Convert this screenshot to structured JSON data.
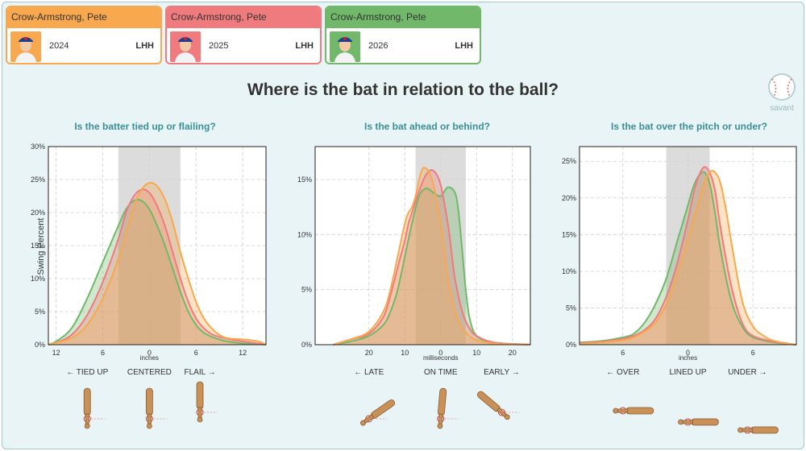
{
  "cards": [
    {
      "name": "Crow-Armstrong, Pete",
      "season": "2024",
      "hand": "LHH",
      "color": "#f8a84e"
    },
    {
      "name": "Crow-Armstrong, Pete",
      "season": "2025",
      "hand": "LHH",
      "color": "#f07b7e"
    },
    {
      "name": "Crow-Armstrong, Pete",
      "season": "2026",
      "hand": "LHH",
      "color": "#71b86a"
    }
  ],
  "page_title": "Where is the bat in relation to the ball?",
  "logo_text": "savant",
  "y_axis_label": "Swing Percent",
  "chart_data": [
    {
      "type": "area",
      "title": "Is the batter tied up or flailing?",
      "xlabel": "inches",
      "xlim": [
        13,
        -15
      ],
      "ylim": [
        0,
        30
      ],
      "x_ticks": [
        12,
        6,
        0,
        -6,
        -12
      ],
      "x_tick_labels": [
        "12",
        "6",
        "0",
        "6",
        "12"
      ],
      "y_ticks": [
        0,
        5,
        10,
        15,
        20,
        25,
        30
      ],
      "y_tick_labels": [
        "0%",
        "5%",
        "10%",
        "15%",
        "20%",
        "25%",
        "30%"
      ],
      "shaded_band": [
        4,
        -4
      ],
      "zone_labels": [
        {
          "x": 8,
          "text": "← TIED UP"
        },
        {
          "x": 0,
          "text": "CENTERED"
        },
        {
          "x": -6.5,
          "text": "FLAIL →"
        }
      ],
      "series": [
        {
          "season": "2026",
          "color": "#71b86a",
          "x": [
            13,
            12,
            10,
            8,
            6,
            4,
            3,
            2,
            1,
            0,
            -1,
            -2,
            -3,
            -4,
            -5,
            -6,
            -7,
            -8,
            -9,
            -10,
            -12,
            -15
          ],
          "y": [
            0,
            0.5,
            2.5,
            7,
            12.5,
            18,
            20.5,
            21.8,
            21.8,
            20.5,
            18,
            15,
            11.5,
            8,
            5,
            3,
            1.8,
            1.2,
            0.8,
            0.5,
            0.2,
            0
          ]
        },
        {
          "season": "2025",
          "color": "#f07b7e",
          "x": [
            13,
            12,
            10,
            8,
            6,
            4,
            3,
            2,
            1,
            0,
            -1,
            -2,
            -3,
            -4,
            -5,
            -6,
            -7,
            -8,
            -9,
            -10,
            -12,
            -15
          ],
          "y": [
            0,
            0.3,
            1.5,
            4.5,
            9.5,
            16,
            20,
            22.5,
            23.5,
            23,
            21,
            18,
            14,
            10,
            6.5,
            4,
            2.5,
            1.6,
            1.2,
            0.9,
            0.5,
            0
          ]
        },
        {
          "season": "2024",
          "color": "#f8a84e",
          "x": [
            13,
            12,
            10,
            8,
            6,
            4,
            3,
            2,
            1,
            0,
            -1,
            -2,
            -3,
            -4,
            -5,
            -6,
            -7,
            -8,
            -9,
            -10,
            -12,
            -14,
            -15
          ],
          "y": [
            0,
            0.3,
            1,
            3,
            7,
            13,
            17,
            21,
            23.5,
            24.5,
            24,
            22,
            18.5,
            14,
            10,
            6.5,
            4,
            2.5,
            1.5,
            1,
            0.8,
            0.5,
            0
          ]
        }
      ]
    },
    {
      "type": "area",
      "title": "Is the bat ahead or behind?",
      "xlabel": "milliseconds",
      "xlim": [
        35,
        -25
      ],
      "ylim": [
        0,
        18
      ],
      "x_ticks": [
        20,
        10,
        0,
        -10,
        -20
      ],
      "x_tick_labels": [
        "20",
        "10",
        "0",
        "10",
        "20"
      ],
      "y_ticks": [
        0,
        5,
        10,
        15
      ],
      "y_tick_labels": [
        "0%",
        "5%",
        "10%",
        "15%"
      ],
      "shaded_band": [
        7,
        -7
      ],
      "zone_labels": [
        {
          "x": 20,
          "text": "← LATE"
        },
        {
          "x": 0,
          "text": "ON TIME"
        },
        {
          "x": -17,
          "text": "EARLY →"
        }
      ],
      "series": [
        {
          "season": "2026",
          "color": "#71b86a",
          "x": [
            30,
            25,
            20,
            16,
            14,
            12,
            10,
            8,
            6,
            4,
            2,
            0,
            -2,
            -4,
            -5,
            -6,
            -7,
            -8,
            -10,
            -15,
            -25
          ],
          "y": [
            0,
            0.3,
            0.8,
            1.8,
            3,
            5,
            8,
            11,
            13.5,
            14.2,
            13.8,
            13.5,
            14.3,
            13.8,
            12,
            8.5,
            5,
            2.5,
            0.8,
            0.2,
            0
          ]
        },
        {
          "season": "2025",
          "color": "#f07b7e",
          "x": [
            30,
            25,
            20,
            16,
            14,
            12,
            10,
            9,
            8,
            7,
            6,
            4,
            2,
            0,
            -2,
            -3,
            -4,
            -6,
            -8,
            -10,
            -15,
            -25
          ],
          "y": [
            0,
            0.5,
            1,
            2.5,
            4.5,
            7,
            9.5,
            11,
            12,
            13,
            14,
            15.5,
            15.8,
            14.5,
            11,
            8.5,
            6,
            3,
            1.5,
            0.8,
            0.2,
            0
          ]
        },
        {
          "season": "2024",
          "color": "#f8a84e",
          "x": [
            30,
            25,
            20,
            16,
            14,
            12,
            10,
            9,
            8,
            7,
            6,
            5,
            4,
            3,
            2,
            0,
            -1,
            -2,
            -4,
            -6,
            -8,
            -10,
            -15,
            -25
          ],
          "y": [
            0,
            0.5,
            1.2,
            3,
            5,
            8,
            11,
            12,
            12.5,
            13.5,
            15,
            16,
            16,
            15.5,
            14.5,
            11,
            8.5,
            6,
            3,
            1.5,
            0.8,
            0.4,
            0.1,
            0
          ]
        }
      ]
    },
    {
      "type": "area",
      "title": "Is the bat over the pitch or under?",
      "xlabel": "inches",
      "xlim": [
        -10,
        10
      ],
      "ylim": [
        0,
        27
      ],
      "x_ticks": [
        -6,
        0,
        6
      ],
      "x_tick_labels": [
        "6",
        "0",
        "6"
      ],
      "y_ticks": [
        0,
        5,
        10,
        15,
        20,
        25
      ],
      "y_tick_labels": [
        "0%",
        "5%",
        "10%",
        "15%",
        "20%",
        "25%"
      ],
      "shaded_band": [
        -2,
        2
      ],
      "zone_labels": [
        {
          "x": -6,
          "text": "← OVER"
        },
        {
          "x": 0,
          "text": "LINED UP"
        },
        {
          "x": 5.5,
          "text": "UNDER →"
        }
      ],
      "series": [
        {
          "season": "2026",
          "color": "#71b86a",
          "x": [
            -10,
            -8,
            -6,
            -5,
            -4,
            -3,
            -2,
            -1,
            0,
            0.5,
            1,
            1.5,
            2,
            2.5,
            3,
            4,
            5,
            6,
            8,
            10
          ],
          "y": [
            0.3,
            0.5,
            1,
            1.5,
            3,
            5.5,
            9,
            14,
            19,
            21.5,
            23,
            23.5,
            22,
            18,
            13,
            6,
            2.5,
            1,
            0.3,
            0
          ]
        },
        {
          "season": "2025",
          "color": "#f07b7e",
          "x": [
            -10,
            -8,
            -6,
            -5,
            -4,
            -3,
            -2,
            -1,
            0,
            0.5,
            1,
            1.5,
            2,
            2.5,
            3,
            4,
            5,
            6,
            8,
            10
          ],
          "y": [
            0.2,
            0.4,
            0.8,
            1.2,
            2,
            3.5,
            6.5,
            11,
            17,
            20.5,
            23,
            24.2,
            23.5,
            21,
            16,
            8,
            3,
            1.2,
            0.4,
            0
          ]
        },
        {
          "season": "2024",
          "color": "#f8a84e",
          "x": [
            -10,
            -8,
            -6,
            -5,
            -4,
            -3,
            -2,
            -1,
            0,
            1,
            1.5,
            2,
            2.5,
            3,
            3.5,
            4,
            5,
            6,
            7,
            8,
            10
          ],
          "y": [
            0.1,
            0.3,
            0.6,
            1,
            1.8,
            3,
            5.5,
            9.5,
            14.5,
            19.5,
            22,
            23.5,
            23.5,
            22,
            18.5,
            14,
            6,
            2.5,
            1.2,
            0.5,
            0
          ]
        }
      ]
    }
  ]
}
